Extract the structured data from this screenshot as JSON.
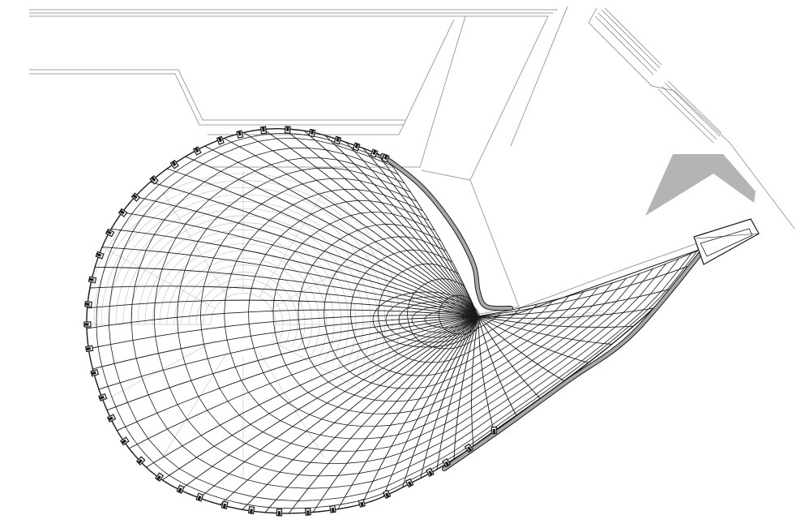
{
  "drawing": {
    "type": "architectural-roof-plan",
    "labels": [],
    "colors": {
      "background": "#ffffff",
      "line": "#1a1a1a",
      "site_line": "#9a9a9a",
      "faint_line": "#c8c8c8",
      "fill_gray": "#b4b4b4",
      "edge_beam": "#a8a8a8"
    },
    "elements": {
      "roof_ribs": 56,
      "roof_rings": 14,
      "perimeter_posts": 40
    }
  }
}
